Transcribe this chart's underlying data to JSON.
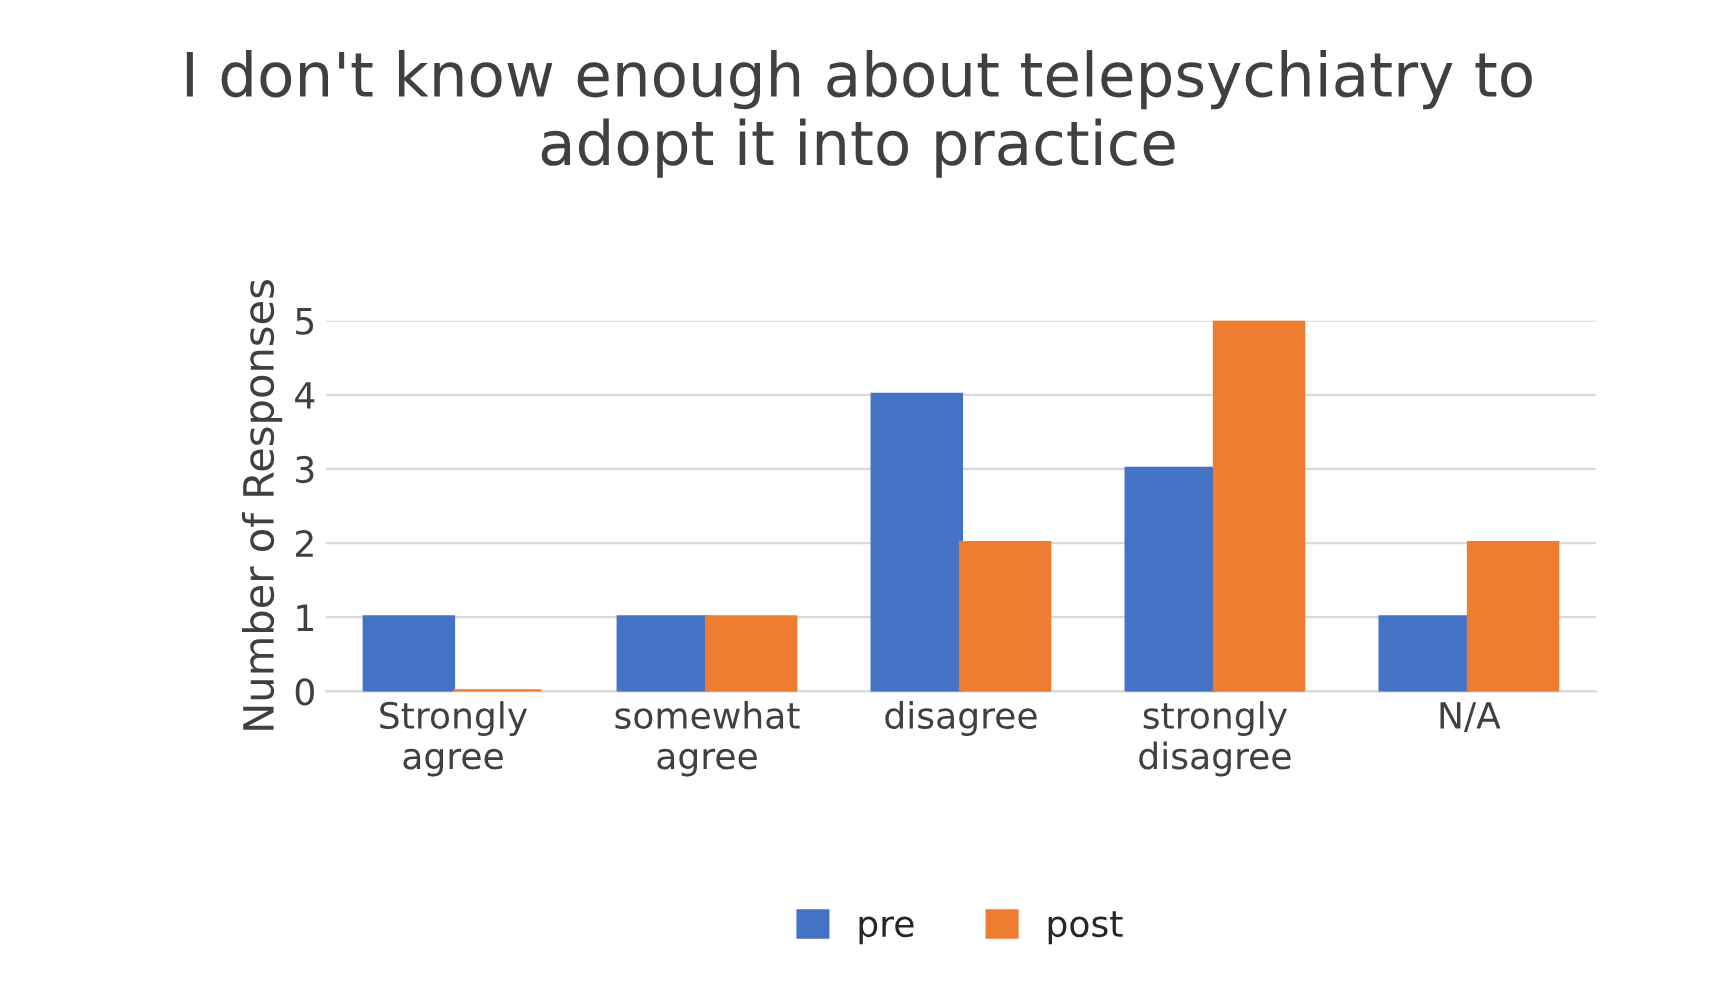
{
  "chart_data": {
    "type": "bar",
    "title": "I don't know enough about telepsychiatry to\nadopt it into practice",
    "ylabel": "Number of Responses",
    "categories": [
      "Strongly\nagree",
      "somewhat\nagree",
      "disagree",
      "strongly\ndisagree",
      "N/A"
    ],
    "series": [
      {
        "name": "pre",
        "color": "#4472c4",
        "values": [
          1,
          1,
          4,
          3,
          1
        ]
      },
      {
        "name": "post",
        "color": "#ed7d31",
        "values": [
          0,
          1,
          2,
          5,
          2
        ]
      }
    ],
    "ylim": [
      0,
      5
    ],
    "yticks": [
      0,
      1,
      2,
      3,
      4,
      5
    ],
    "grid": "y",
    "legend": "bottom"
  }
}
